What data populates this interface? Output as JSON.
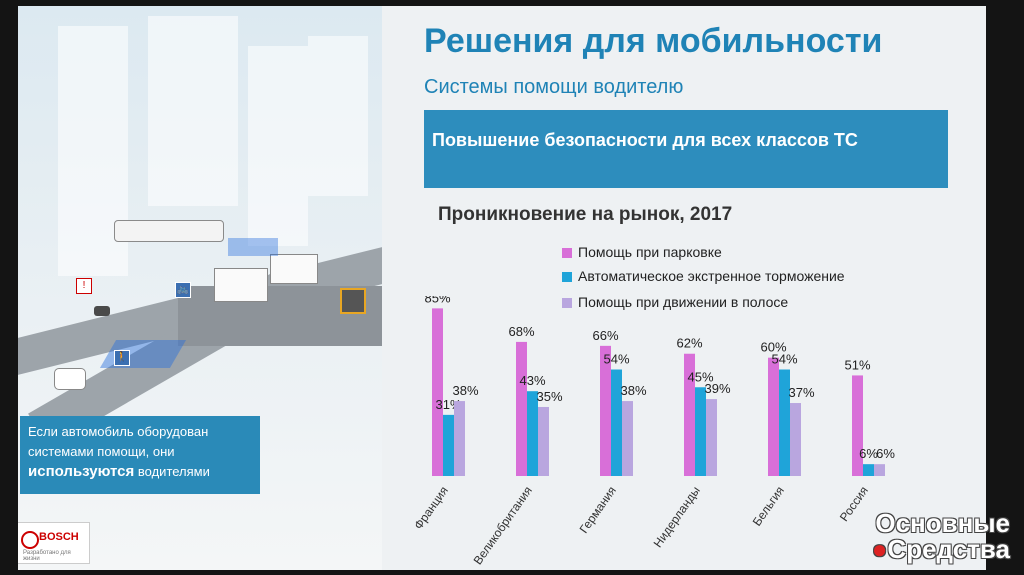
{
  "slide": {
    "title": "Решения для мобильности",
    "subtitle": "Системы помощи водителю",
    "banner": "Повышение безопасности для всех классов ТС",
    "callout": {
      "line1": "Если автомобиль оборудован",
      "line2": "системами помощи, они",
      "emphasis": "используются",
      "line3_rest": " водителями"
    },
    "brand": {
      "name": "BOSCH",
      "slogan": "Разработано для жизни"
    }
  },
  "watermark": {
    "line1": "Основные",
    "line2": "Средства"
  },
  "colors": {
    "accent": "#2d8dbd",
    "parking": "#d86fd8",
    "braking": "#1fa4d9",
    "lane": "#b9a6df"
  },
  "chart_data": {
    "type": "bar",
    "title": "Проникновение на рынок, 2017",
    "categories": [
      "Франция",
      "Великобритания",
      "Германия",
      "Нидерланды",
      "Бельгия",
      "Россия"
    ],
    "series": [
      {
        "name": "Помощь при парковке",
        "values": [
          85,
          68,
          66,
          62,
          60,
          51
        ],
        "labels": [
          "85%",
          "68%",
          "66%",
          "62%",
          "60%",
          "51%"
        ]
      },
      {
        "name": "Автоматическое экстренное торможение",
        "values": [
          31,
          43,
          54,
          45,
          54,
          6
        ],
        "labels": [
          "31%",
          "43%",
          "54%",
          "45%",
          "54%",
          "6%"
        ]
      },
      {
        "name": "Помощь при движении в полосе",
        "values": [
          38,
          35,
          38,
          39,
          37,
          6
        ],
        "labels": [
          "38%",
          "35%",
          "38%",
          "39%",
          "37%",
          "6%"
        ]
      }
    ],
    "ylim": [
      0,
      100
    ],
    "grid": false,
    "legend": "top"
  }
}
